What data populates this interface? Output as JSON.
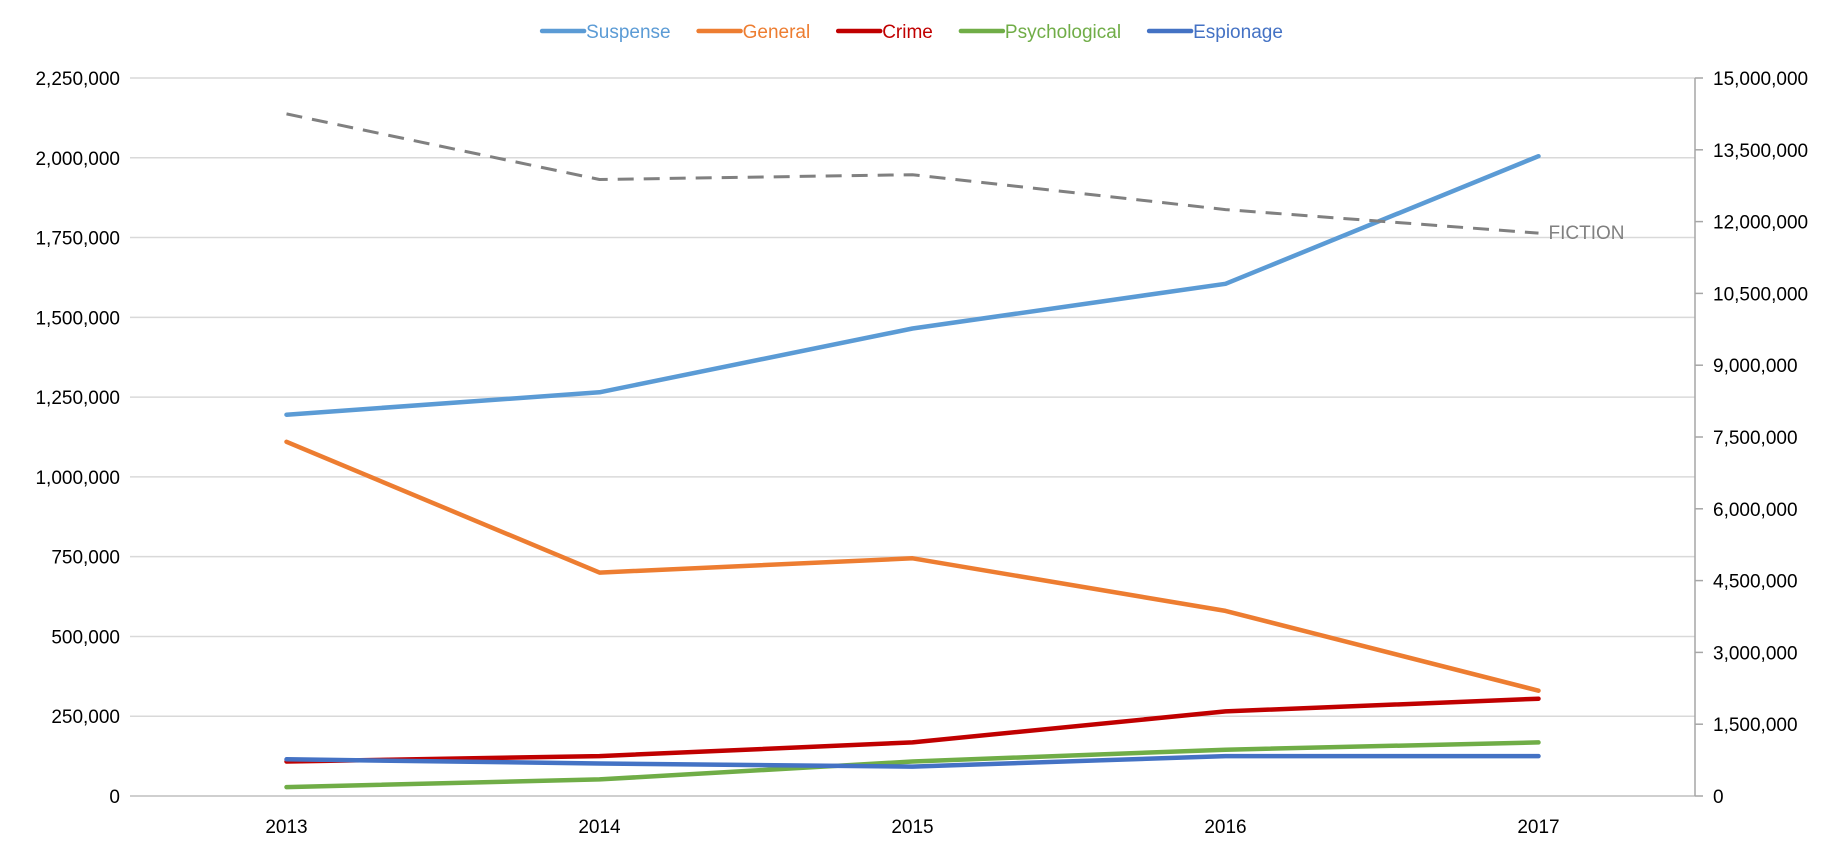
{
  "chart_data": {
    "type": "line",
    "title": "",
    "xlabel": "",
    "ylabel": "",
    "legend_position": "top-center",
    "grid": true,
    "x": [
      "2013",
      "2014",
      "2015",
      "2016",
      "2017"
    ],
    "y_left": {
      "range": [
        0,
        2250000
      ],
      "ticks": [
        0,
        250000,
        500000,
        750000,
        1000000,
        1250000,
        1500000,
        1750000,
        2000000,
        2250000
      ],
      "tick_labels": [
        "0",
        "250,000",
        "500,000",
        "750,000",
        "1,000,000",
        "1,250,000",
        "1,500,000",
        "1,750,000",
        "2,000,000",
        "2,250,000"
      ]
    },
    "y_right": {
      "range": [
        0,
        15000000
      ],
      "ticks": [
        0,
        1500000,
        3000000,
        4500000,
        6000000,
        7500000,
        9000000,
        10500000,
        12000000,
        13500000,
        15000000
      ],
      "tick_labels": [
        "0",
        "1,500,000",
        "3,000,000",
        "4,500,000",
        "6,000,000",
        "7,500,000",
        "9,000,000",
        "10,500,000",
        "12,000,000",
        "13,500,000",
        "15,000,000"
      ]
    },
    "series": [
      {
        "name": "Suspense",
        "axis": "left",
        "color": "#5B9BD5",
        "style": "solid",
        "in_legend": true,
        "values": [
          1195000,
          1265000,
          1465000,
          1605000,
          2005000
        ]
      },
      {
        "name": "General",
        "axis": "left",
        "color": "#ED7D31",
        "style": "solid",
        "in_legend": true,
        "values": [
          1110000,
          700000,
          745000,
          580000,
          330000
        ]
      },
      {
        "name": "Crime",
        "axis": "left",
        "color": "#C00000",
        "style": "solid",
        "in_legend": true,
        "values": [
          108000,
          125000,
          168000,
          265000,
          305000
        ]
      },
      {
        "name": "Psychological",
        "axis": "left",
        "color": "#70AD47",
        "style": "solid",
        "in_legend": true,
        "values": [
          28000,
          52000,
          108000,
          145000,
          168000
        ]
      },
      {
        "name": "Espionage",
        "axis": "left",
        "color": "#4472C4",
        "style": "solid",
        "in_legend": true,
        "values": [
          115000,
          102000,
          92000,
          125000,
          125000
        ]
      },
      {
        "name": "FICTION",
        "axis": "right",
        "color": "#808080",
        "style": "dashed",
        "in_legend": false,
        "label_at_end": true,
        "values": [
          14250000,
          12880000,
          12980000,
          12250000,
          11760000
        ]
      }
    ]
  }
}
